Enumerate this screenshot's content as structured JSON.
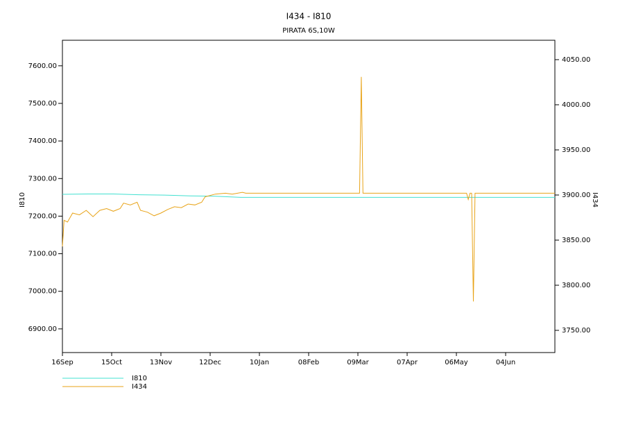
{
  "chart_data": {
    "type": "line",
    "title": "I434 - I810",
    "subtitle": "PIRATA 6S,10W",
    "ylabel": "I810",
    "y2label": "I434",
    "xlim": [
      0,
      290
    ],
    "xticks": [
      {
        "value": 0,
        "label": "16Sep"
      },
      {
        "value": 29,
        "label": "15Oct"
      },
      {
        "value": 58,
        "label": "13Nov"
      },
      {
        "value": 87,
        "label": "12Dec"
      },
      {
        "value": 116,
        "label": "10Jan"
      },
      {
        "value": 145,
        "label": "08Feb"
      },
      {
        "value": 174,
        "label": "09Mar"
      },
      {
        "value": 203,
        "label": "07Apr"
      },
      {
        "value": 232,
        "label": "06May"
      },
      {
        "value": 261,
        "label": "04Jun"
      }
    ],
    "ylim": [
      6837,
      7668
    ],
    "yticks": [
      {
        "value": 6900,
        "label": "6900.00"
      },
      {
        "value": 7000,
        "label": "7000.00"
      },
      {
        "value": 7100,
        "label": "7100.00"
      },
      {
        "value": 7200,
        "label": "7200.00"
      },
      {
        "value": 7300,
        "label": "7300.00"
      },
      {
        "value": 7400,
        "label": "7400.00"
      },
      {
        "value": 7500,
        "label": "7500.00"
      },
      {
        "value": 7600,
        "label": "7600.00"
      }
    ],
    "y2lim": [
      3725.4,
      4071.5
    ],
    "y2ticks": [
      {
        "value": 3750,
        "label": "3750.00"
      },
      {
        "value": 3800,
        "label": "3800.00"
      },
      {
        "value": 3850,
        "label": "3850.00"
      },
      {
        "value": 3900,
        "label": "3900.00"
      },
      {
        "value": 3950,
        "label": "3950.00"
      },
      {
        "value": 4000,
        "label": "4000.00"
      },
      {
        "value": 4050,
        "label": "4050.00"
      }
    ],
    "series": [
      {
        "name": "I810",
        "color": "#40e0d0",
        "axis": "y",
        "x": [
          0,
          15,
          30,
          45,
          60,
          75,
          90,
          105,
          290
        ],
        "values": [
          7258,
          7259,
          7259,
          7257,
          7256,
          7254,
          7253,
          7250,
          7250
        ]
      },
      {
        "name": "I434",
        "color": "#e8a317",
        "axis": "y2",
        "x": [
          0,
          1,
          3,
          6,
          10,
          14,
          18,
          22,
          26,
          30,
          34,
          36,
          40,
          44,
          46,
          50,
          54,
          58,
          62,
          66,
          70,
          74,
          78,
          82,
          84,
          90,
          96,
          100,
          106,
          108,
          175,
          176,
          177,
          238,
          239,
          240,
          241,
          242,
          243,
          290
        ],
        "values": [
          3843,
          3872,
          3870,
          3880,
          3878,
          3883,
          3876,
          3883,
          3885,
          3882,
          3885,
          3891,
          3889,
          3892,
          3883,
          3881,
          3877,
          3880,
          3884,
          3887,
          3886,
          3890,
          3889,
          3892,
          3898,
          3901,
          3902,
          3901,
          3903,
          3902,
          3902,
          4031,
          3902,
          3902,
          3895,
          3902,
          3902,
          3782,
          3902,
          3902
        ]
      }
    ]
  }
}
